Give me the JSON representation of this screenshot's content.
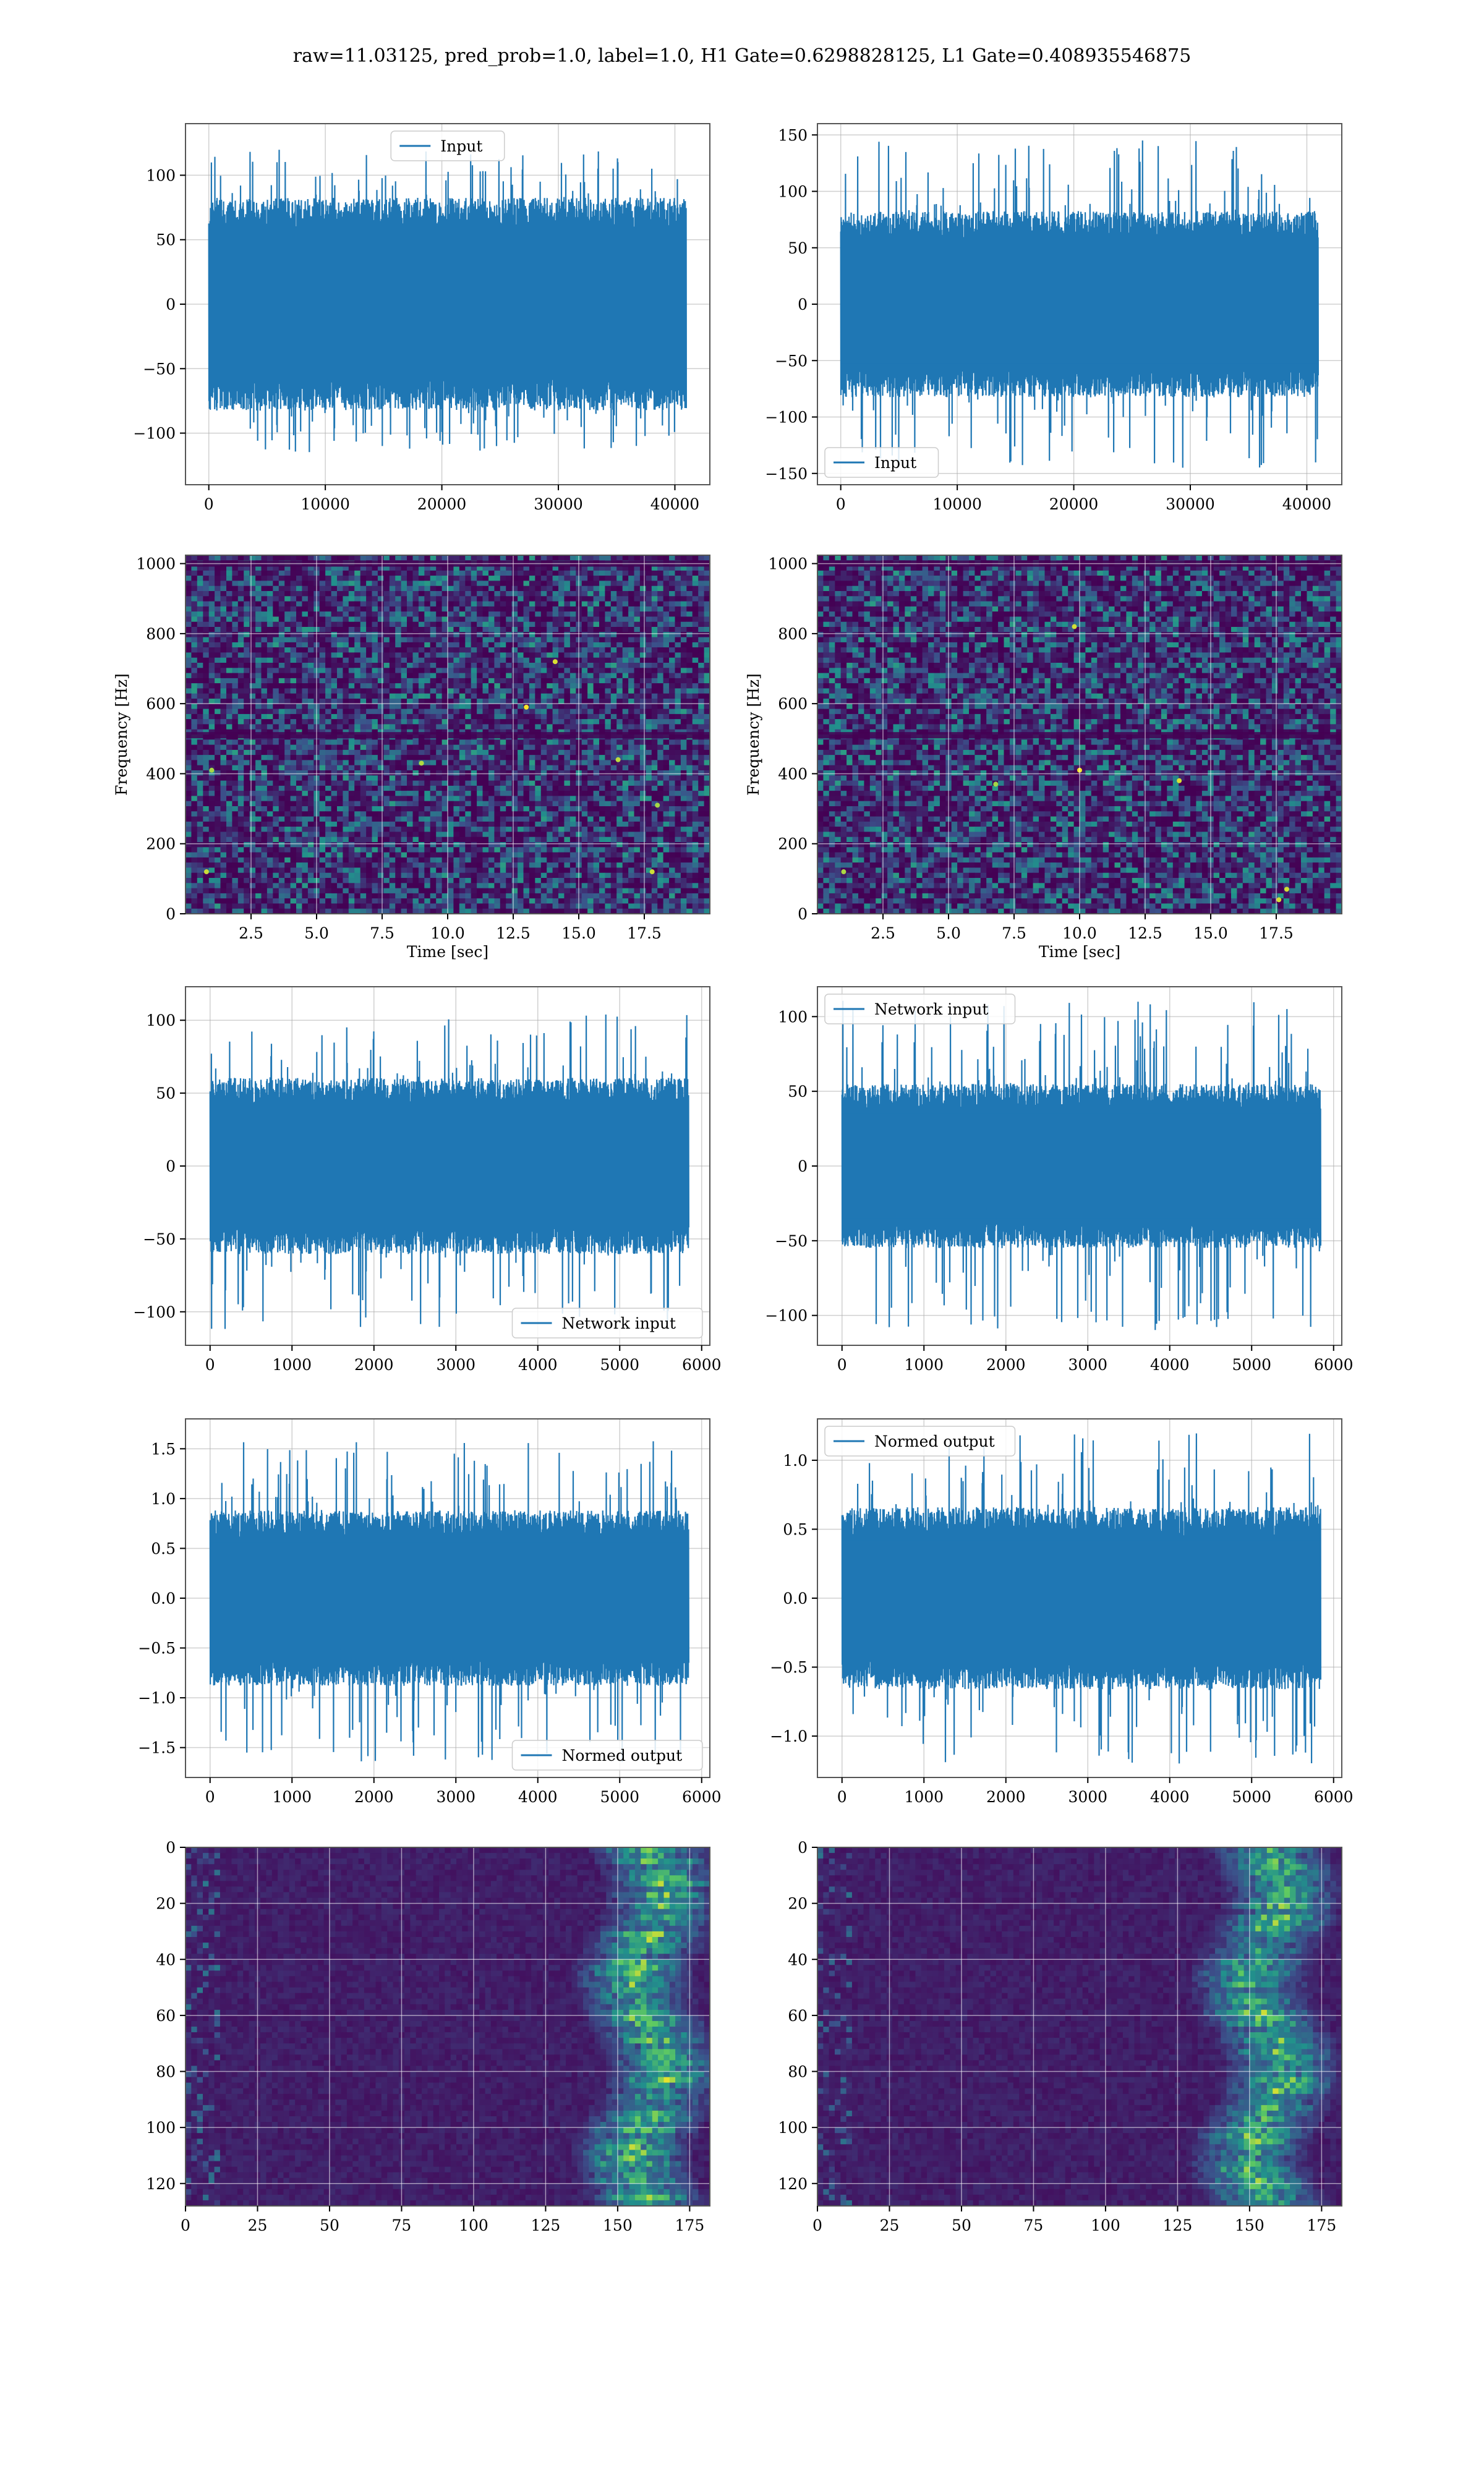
{
  "figure": {
    "suptitle": "raw=11.03125, pred_prob=1.0, label=1.0, H1 Gate=0.6298828125, L1 Gate=0.408935546875"
  },
  "colors": {
    "line": "#1f77b4",
    "grid": "#b0b0b0",
    "viridis_dark": "#440154",
    "viridis_mid": "#21918c",
    "viridis_bright": "#fde725"
  },
  "chart_data": [
    {
      "id": "input-h1",
      "type": "line",
      "row": 0,
      "col": 0,
      "legend": "Input",
      "legend_loc": "upper center",
      "xlim": [
        -2000,
        43000
      ],
      "ylim": [
        -140,
        140
      ],
      "xticks": [
        0,
        10000,
        20000,
        30000,
        40000
      ],
      "xtick_labels": [
        "0",
        "10000",
        "20000",
        "30000",
        "40000"
      ],
      "yticks": [
        -100,
        -50,
        0,
        50,
        100
      ],
      "ytick_labels": [
        "−100",
        "−50",
        "0",
        "50",
        "100"
      ],
      "x_range": [
        0,
        40960
      ],
      "envelope": 75,
      "peak_max": 120,
      "peak_min": -115,
      "xlabel": "",
      "ylabel": ""
    },
    {
      "id": "input-l1",
      "type": "line",
      "row": 0,
      "col": 1,
      "legend": "Input",
      "legend_loc": "lower left",
      "xlim": [
        -2000,
        43000
      ],
      "ylim": [
        -160,
        160
      ],
      "xticks": [
        0,
        10000,
        20000,
        30000,
        40000
      ],
      "xtick_labels": [
        "0",
        "10000",
        "20000",
        "30000",
        "40000"
      ],
      "yticks": [
        -150,
        -100,
        -50,
        0,
        50,
        100,
        150
      ],
      "ytick_labels": [
        "−150",
        "−100",
        "−50",
        "0",
        "50",
        "100",
        "150"
      ],
      "x_range": [
        0,
        40960
      ],
      "envelope": 75,
      "peak_max": 148,
      "peak_min": -145,
      "xlabel": "",
      "ylabel": ""
    },
    {
      "id": "spectrogram-h1",
      "type": "heatmap",
      "row": 1,
      "col": 0,
      "xlim": [
        0,
        20
      ],
      "ylim": [
        0,
        1024
      ],
      "xticks": [
        2.5,
        5.0,
        7.5,
        10.0,
        12.5,
        15.0,
        17.5
      ],
      "xtick_labels": [
        "2.5",
        "5.0",
        "7.5",
        "10.0",
        "12.5",
        "15.0",
        "17.5"
      ],
      "yticks": [
        0,
        200,
        400,
        600,
        800,
        1000
      ],
      "ytick_labels": [
        "0",
        "200",
        "400",
        "600",
        "800",
        "1000"
      ],
      "xlabel": "Time [sec]",
      "ylabel": "Frequency [Hz]",
      "colormap": "viridis",
      "dark_bands": [
        1000,
        510
      ],
      "hotspots": [
        [
          0.8,
          120
        ],
        [
          1.0,
          410
        ],
        [
          9.0,
          430
        ],
        [
          14.1,
          720
        ],
        [
          13.0,
          590
        ],
        [
          16.5,
          440
        ],
        [
          18.0,
          310
        ],
        [
          17.8,
          120
        ]
      ]
    },
    {
      "id": "spectrogram-l1",
      "type": "heatmap",
      "row": 1,
      "col": 1,
      "xlim": [
        0,
        20
      ],
      "ylim": [
        0,
        1024
      ],
      "xticks": [
        2.5,
        5.0,
        7.5,
        10.0,
        12.5,
        15.0,
        17.5
      ],
      "xtick_labels": [
        "2.5",
        "5.0",
        "7.5",
        "10.0",
        "12.5",
        "15.0",
        "17.5"
      ],
      "yticks": [
        0,
        200,
        400,
        600,
        800,
        1000
      ],
      "ytick_labels": [
        "0",
        "200",
        "400",
        "600",
        "800",
        "1000"
      ],
      "xlabel": "Time [sec]",
      "ylabel": "Frequency [Hz]",
      "colormap": "viridis",
      "dark_bands": [
        1000,
        510
      ],
      "hotspots": [
        [
          1.0,
          120
        ],
        [
          6.8,
          370
        ],
        [
          10.0,
          410
        ],
        [
          13.8,
          380
        ],
        [
          17.6,
          40
        ],
        [
          17.9,
          70
        ],
        [
          9.8,
          820
        ]
      ]
    },
    {
      "id": "network-input-h1",
      "type": "line",
      "row": 2,
      "col": 0,
      "legend": "Network input",
      "legend_loc": "lower right",
      "xlim": [
        -300,
        6100
      ],
      "ylim": [
        -123,
        123
      ],
      "xticks": [
        0,
        1000,
        2000,
        3000,
        4000,
        5000,
        6000
      ],
      "xtick_labels": [
        "0",
        "1000",
        "2000",
        "3000",
        "4000",
        "5000",
        "6000"
      ],
      "yticks": [
        -100,
        -50,
        0,
        50,
        100
      ],
      "ytick_labels": [
        "−100",
        "−50",
        "0",
        "50",
        "100"
      ],
      "x_range": [
        0,
        5840
      ],
      "envelope": 55,
      "peak_max": 104,
      "peak_min": -112,
      "xlabel": "",
      "ylabel": ""
    },
    {
      "id": "network-input-l1",
      "type": "line",
      "row": 2,
      "col": 1,
      "legend": "Network input",
      "legend_loc": "upper left",
      "xlim": [
        -300,
        6100
      ],
      "ylim": [
        -120,
        120
      ],
      "xticks": [
        0,
        1000,
        2000,
        3000,
        4000,
        5000,
        6000
      ],
      "xtick_labels": [
        "0",
        "1000",
        "2000",
        "3000",
        "4000",
        "5000",
        "6000"
      ],
      "yticks": [
        -100,
        -50,
        0,
        50,
        100
      ],
      "ytick_labels": [
        "−100",
        "−50",
        "0",
        "50",
        "100"
      ],
      "x_range": [
        0,
        5840
      ],
      "envelope": 50,
      "peak_max": 113,
      "peak_min": -110,
      "xlabel": "",
      "ylabel": ""
    },
    {
      "id": "normed-output-h1",
      "type": "line",
      "row": 3,
      "col": 0,
      "legend": "Normed output",
      "legend_loc": "lower right",
      "xlim": [
        -300,
        6100
      ],
      "ylim": [
        -1.8,
        1.8
      ],
      "xticks": [
        0,
        1000,
        2000,
        3000,
        4000,
        5000,
        6000
      ],
      "xtick_labels": [
        "0",
        "1000",
        "2000",
        "3000",
        "4000",
        "5000",
        "6000"
      ],
      "yticks": [
        -1.5,
        -1.0,
        -0.5,
        0.0,
        0.5,
        1.0,
        1.5
      ],
      "ytick_labels": [
        "−1.5",
        "−1.0",
        "−0.5",
        "0.0",
        "0.5",
        "1.0",
        "1.5"
      ],
      "x_range": [
        0,
        5840
      ],
      "envelope": 0.8,
      "peak_max": 1.6,
      "peak_min": -1.65,
      "xlabel": "",
      "ylabel": ""
    },
    {
      "id": "normed-output-l1",
      "type": "line",
      "row": 3,
      "col": 1,
      "legend": "Normed output",
      "legend_loc": "upper left",
      "xlim": [
        -300,
        6100
      ],
      "ylim": [
        -1.3,
        1.3
      ],
      "xticks": [
        0,
        1000,
        2000,
        3000,
        4000,
        5000,
        6000
      ],
      "xtick_labels": [
        "0",
        "1000",
        "2000",
        "3000",
        "4000",
        "5000",
        "6000"
      ],
      "yticks": [
        -1.0,
        -0.5,
        0.0,
        0.5,
        1.0
      ],
      "ytick_labels": [
        "−1.0",
        "−0.5",
        "0.0",
        "0.5",
        "1.0"
      ],
      "x_range": [
        0,
        5840
      ],
      "envelope": 0.6,
      "peak_max": 1.2,
      "peak_min": -1.2,
      "xlabel": "",
      "ylabel": ""
    },
    {
      "id": "activation-map-h1",
      "type": "heatmap",
      "row": 4,
      "col": 0,
      "xlim": [
        0,
        182
      ],
      "ylim": [
        128,
        0
      ],
      "xticks": [
        0,
        25,
        50,
        75,
        100,
        125,
        150,
        175
      ],
      "xtick_labels": [
        "0",
        "25",
        "50",
        "75",
        "100",
        "125",
        "150",
        "175"
      ],
      "yticks": [
        0,
        20,
        40,
        60,
        80,
        100,
        120
      ],
      "ytick_labels": [
        "0",
        "20",
        "40",
        "60",
        "80",
        "100",
        "120"
      ],
      "xlabel": "",
      "ylabel": "",
      "colormap": "viridis",
      "rows": 128,
      "cols": 182,
      "activity_peak_col": 160
    },
    {
      "id": "activation-map-l1",
      "type": "heatmap",
      "row": 4,
      "col": 1,
      "xlim": [
        0,
        182
      ],
      "ylim": [
        128,
        0
      ],
      "xticks": [
        0,
        25,
        50,
        75,
        100,
        125,
        150,
        175
      ],
      "xtick_labels": [
        "0",
        "25",
        "50",
        "75",
        "100",
        "125",
        "150",
        "175"
      ],
      "yticks": [
        0,
        20,
        40,
        60,
        80,
        100,
        120
      ],
      "ytick_labels": [
        "0",
        "20",
        "40",
        "60",
        "80",
        "100",
        "120"
      ],
      "xlabel": "",
      "ylabel": "",
      "colormap": "viridis",
      "rows": 128,
      "cols": 182,
      "activity_peak_col": 155
    }
  ]
}
